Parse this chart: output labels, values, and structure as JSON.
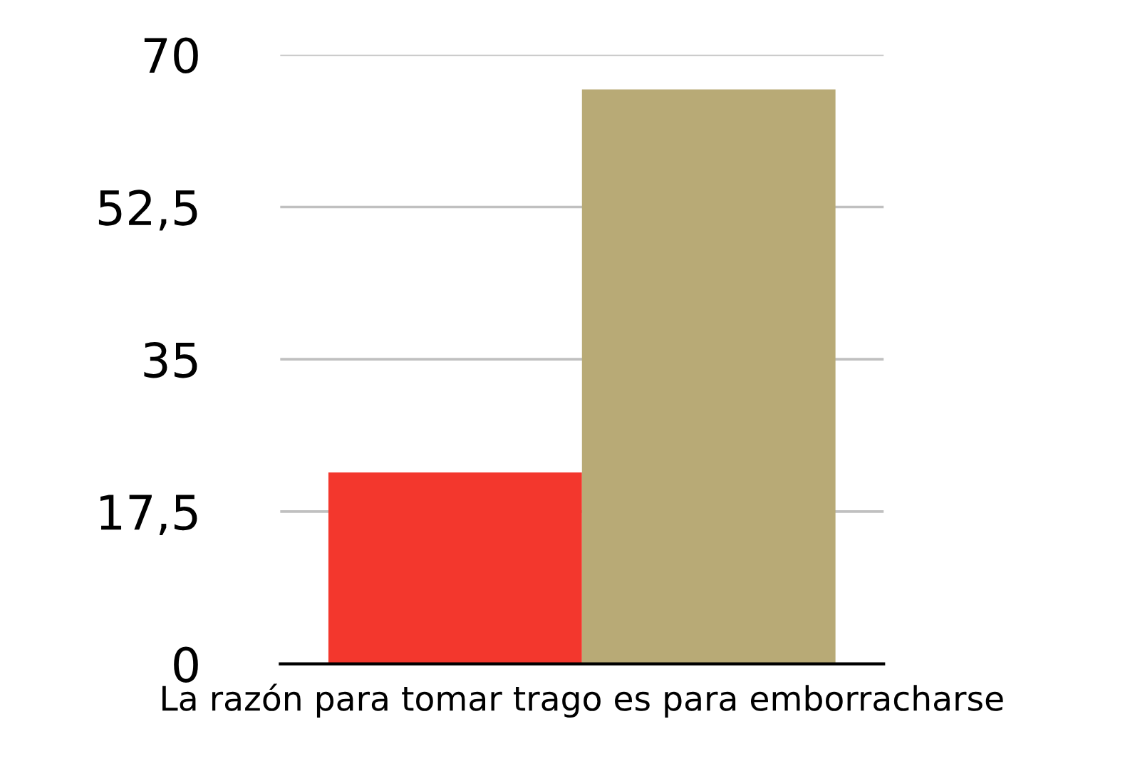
{
  "chart_data": {
    "type": "bar",
    "xlabel": "La razón para tomar trago es para emborracharse",
    "categories": [
      null,
      null
    ],
    "values": [
      22,
      66
    ],
    "colors": [
      "#f3372d",
      "#b8aa76"
    ],
    "ylim": [
      0,
      70
    ],
    "yticks": [
      0,
      {
        "value": 17.5,
        "label": "17,5"
      },
      35,
      {
        "value": 52.5,
        "label": "52,5"
      },
      70
    ],
    "grid": "y",
    "legend": false
  }
}
